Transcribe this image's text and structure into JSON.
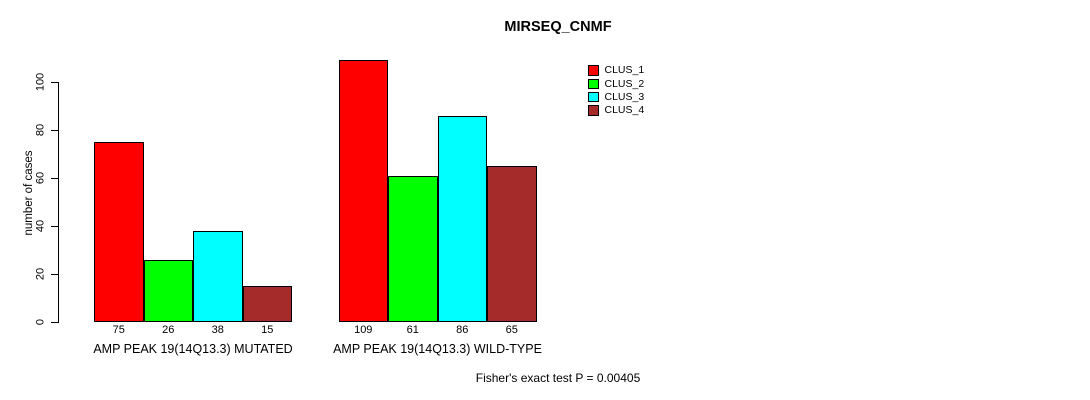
{
  "title": "MIRSEQ_CNMF",
  "footer": {
    "note": "Fisher's exact test P = 0.00405"
  },
  "chart_data": {
    "type": "bar",
    "title": "MIRSEQ_CNMF",
    "xlabel": "",
    "ylabel": "number of cases",
    "ylim": [
      0,
      100
    ],
    "yticks": [
      0,
      20,
      40,
      60,
      80,
      100
    ],
    "grid": false,
    "legend_position": "top-right",
    "categories": [
      "AMP PEAK 19(14Q13.3) MUTATED",
      "AMP PEAK 19(14Q13.3) WILD-TYPE"
    ],
    "series": [
      {
        "name": "CLUS_1",
        "color": "#ff0000",
        "values": [
          75,
          109
        ]
      },
      {
        "name": "CLUS_2",
        "color": "#00ff00",
        "values": [
          26,
          61
        ]
      },
      {
        "name": "CLUS_3",
        "color": "#00ffff",
        "values": [
          38,
          86
        ]
      },
      {
        "name": "CLUS_4",
        "color": "#a52a2a",
        "values": [
          15,
          65
        ]
      }
    ],
    "bar_value_labels": [
      [
        75,
        26,
        38,
        15
      ],
      [
        109,
        61,
        86,
        65
      ]
    ],
    "annotation": "Fisher's exact test P = 0.00405"
  }
}
